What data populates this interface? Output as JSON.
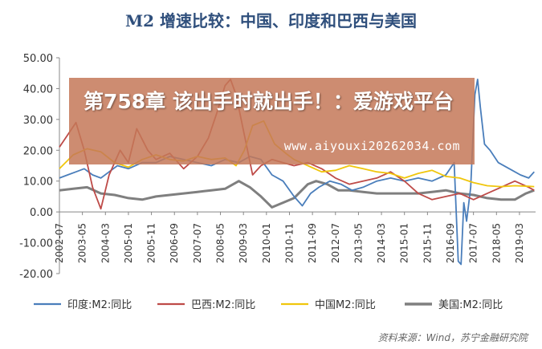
{
  "overlay": {
    "title": "第758章 该出手时就出手！：爱游戏平台",
    "url": "www.aiyouxi20262034.com"
  },
  "source": "资料来源：Wind，苏宁金融研究院",
  "chart_data": {
    "type": "line",
    "title": "M2 增速比较：中国、印度和巴西与美国",
    "ylim": [
      -20,
      50
    ],
    "yticks": [
      "50.00",
      "40.00",
      "30.00",
      "20.00",
      "10.00",
      "0.00",
      "-10.00",
      "-20.00"
    ],
    "xlim": [
      2002.5,
      2019.75
    ],
    "xticks": [
      "2002-07",
      "2003-05",
      "2004-03",
      "2005-01",
      "2005-11",
      "2006-09",
      "2007-07",
      "2008-05",
      "2009-03",
      "2010-01",
      "2010-11",
      "2011-09",
      "2012-07",
      "2013-05",
      "2014-03",
      "2015-01",
      "2015-11",
      "2016-09",
      "2017-07",
      "2018-05",
      "2019-03"
    ],
    "legend_position": "bottom",
    "series": [
      {
        "name": "印度:M2:同比",
        "color": "#4a7ebb",
        "x": [
          2002.5,
          2002.8,
          2003.1,
          2003.4,
          2003.7,
          2004.0,
          2004.3,
          2004.6,
          2005.0,
          2005.5,
          2006.0,
          2006.5,
          2007.0,
          2007.5,
          2008.0,
          2008.5,
          2009.0,
          2009.4,
          2009.8,
          2010.2,
          2010.6,
          2011.0,
          2011.3,
          2011.6,
          2011.9,
          2012.3,
          2012.7,
          2013.1,
          2013.5,
          2014.0,
          2014.5,
          2015.0,
          2015.5,
          2016.0,
          2016.5,
          2016.8,
          2016.95,
          2017.05,
          2017.15,
          2017.25,
          2017.4,
          2017.55,
          2017.65,
          2017.75,
          2017.9,
          2018.1,
          2018.4,
          2018.8,
          2019.2,
          2019.5,
          2019.7
        ],
        "values": [
          11,
          12,
          13,
          14,
          12,
          11,
          13,
          15,
          14,
          16,
          16,
          18,
          17,
          16,
          15,
          17,
          16,
          18,
          17,
          12,
          10,
          5,
          2,
          6,
          8,
          10,
          9,
          7,
          8,
          10,
          11,
          10,
          11,
          10,
          12,
          16,
          -16,
          -17,
          3,
          -3,
          8,
          38,
          43,
          34,
          22,
          20,
          16,
          14,
          12,
          11,
          13
        ]
      },
      {
        "name": "巴西:M2:同比",
        "color": "#be4b48",
        "x": [
          2002.5,
          2002.8,
          2003.1,
          2003.4,
          2003.7,
          2004.0,
          2004.3,
          2004.7,
          2005.0,
          2005.3,
          2005.7,
          2006.0,
          2006.5,
          2007.0,
          2007.5,
          2007.9,
          2008.2,
          2008.5,
          2008.7,
          2008.9,
          2009.2,
          2009.5,
          2009.8,
          2010.2,
          2010.6,
          2011.0,
          2011.5,
          2012.0,
          2012.5,
          2013.0,
          2013.5,
          2014.0,
          2014.5,
          2015.0,
          2015.5,
          2016.0,
          2016.5,
          2017.0,
          2017.5,
          2018.0,
          2018.5,
          2019.0,
          2019.5,
          2019.7
        ],
        "values": [
          21,
          25,
          29,
          20,
          8,
          1,
          12,
          20,
          16,
          27,
          20,
          17,
          19,
          14,
          18,
          24,
          32,
          41,
          43,
          38,
          25,
          12,
          15,
          17,
          16,
          15,
          16,
          14,
          11,
          9,
          10,
          11,
          13,
          10,
          6,
          4,
          5,
          6,
          4,
          6,
          8,
          10,
          8,
          7
        ]
      },
      {
        "name": "中国M2:同比",
        "color": "#f0c60c",
        "x": [
          2002.5,
          2003.0,
          2003.5,
          2004.0,
          2004.5,
          2005.0,
          2005.5,
          2006.0,
          2006.5,
          2007.0,
          2007.5,
          2008.0,
          2008.5,
          2008.9,
          2009.2,
          2009.5,
          2009.9,
          2010.3,
          2010.7,
          2011.0,
          2011.5,
          2012.0,
          2012.5,
          2013.0,
          2013.5,
          2014.0,
          2014.5,
          2015.0,
          2015.5,
          2016.0,
          2016.5,
          2017.0,
          2017.5,
          2018.0,
          2018.5,
          2019.0,
          2019.5,
          2019.7
        ],
        "values": [
          14,
          18.5,
          20.5,
          19.5,
          16,
          14.5,
          17,
          18.5,
          17,
          16.5,
          18,
          17,
          17.5,
          15,
          20,
          28,
          29.5,
          22,
          19,
          17,
          15,
          13,
          13.5,
          15,
          14,
          13,
          12.5,
          11,
          12.5,
          13.5,
          11.5,
          11,
          9.5,
          8.5,
          8.2,
          8.5,
          8.3,
          8.2
        ]
      },
      {
        "name": "美国:M2:同比",
        "color": "#7f7f7f",
        "x": [
          2002.5,
          2003.0,
          2003.5,
          2004.0,
          2004.5,
          2005.0,
          2005.5,
          2006.0,
          2006.5,
          2007.0,
          2007.5,
          2008.0,
          2008.5,
          2009.0,
          2009.4,
          2009.8,
          2010.2,
          2010.6,
          2011.0,
          2011.5,
          2011.8,
          2012.2,
          2012.6,
          2013.0,
          2013.5,
          2014.0,
          2014.5,
          2015.0,
          2015.5,
          2016.0,
          2016.5,
          2017.0,
          2017.5,
          2018.0,
          2018.5,
          2019.0,
          2019.4,
          2019.7
        ],
        "values": [
          7,
          7.5,
          8,
          6,
          5.5,
          4.5,
          4,
          5,
          5.5,
          6,
          6.5,
          7,
          7.5,
          10,
          8,
          5,
          1.5,
          3,
          4.5,
          9,
          10,
          9,
          7,
          7,
          6.5,
          6,
          6,
          6,
          6,
          6.5,
          7,
          6,
          5.5,
          4.5,
          4,
          4,
          6,
          7
        ]
      }
    ]
  }
}
